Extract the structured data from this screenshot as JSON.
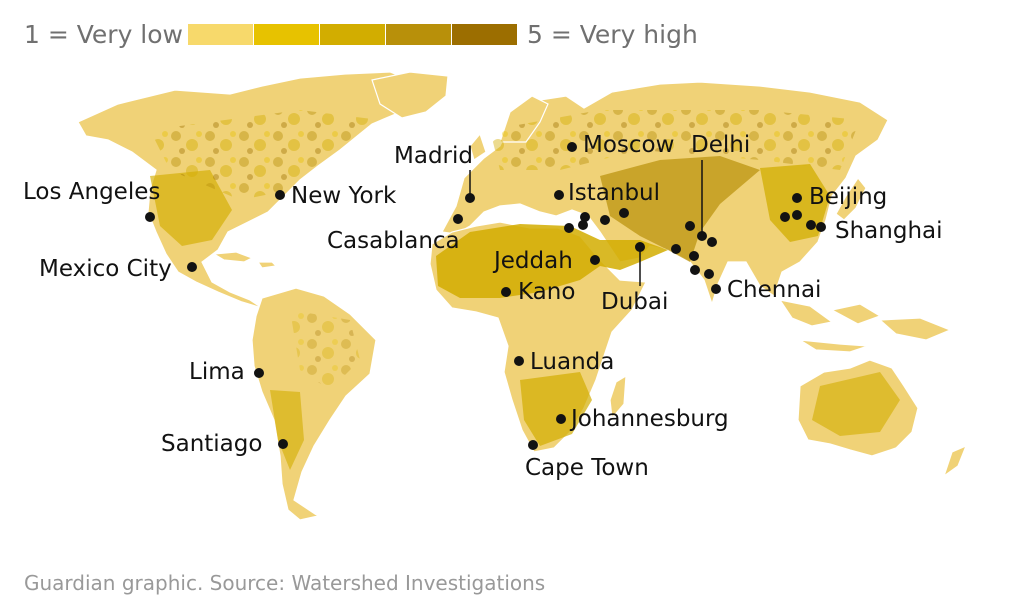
{
  "legend": {
    "low_label": "1 = Very low",
    "high_label": "5 = Very high",
    "colors": [
      "#f7d96b",
      "#e7c200",
      "#d2ad00",
      "#b8900a",
      "#9c6e00"
    ],
    "levels": [
      1,
      2,
      3,
      4,
      5
    ]
  },
  "cities": {
    "moscow": "Moscow",
    "delhi": "Delhi",
    "madrid": "Madrid",
    "los_angeles": "Los Angeles",
    "new_york": "New York",
    "istanbul": "Istanbul",
    "beijing": "Beijing",
    "shanghai": "Shanghai",
    "casablanca": "Casablanca",
    "mexico_city": "Mexico City",
    "jeddah": "Jeddah",
    "kano": "Kano",
    "dubai": "Dubai",
    "chennai": "Chennai",
    "luanda": "Luanda",
    "lima": "Lima",
    "johannesburg": "Johannesburg",
    "santiago": "Santiago",
    "cape_town": "Cape Town"
  },
  "footer": "Guardian graphic. Source: Watershed Investigations"
}
